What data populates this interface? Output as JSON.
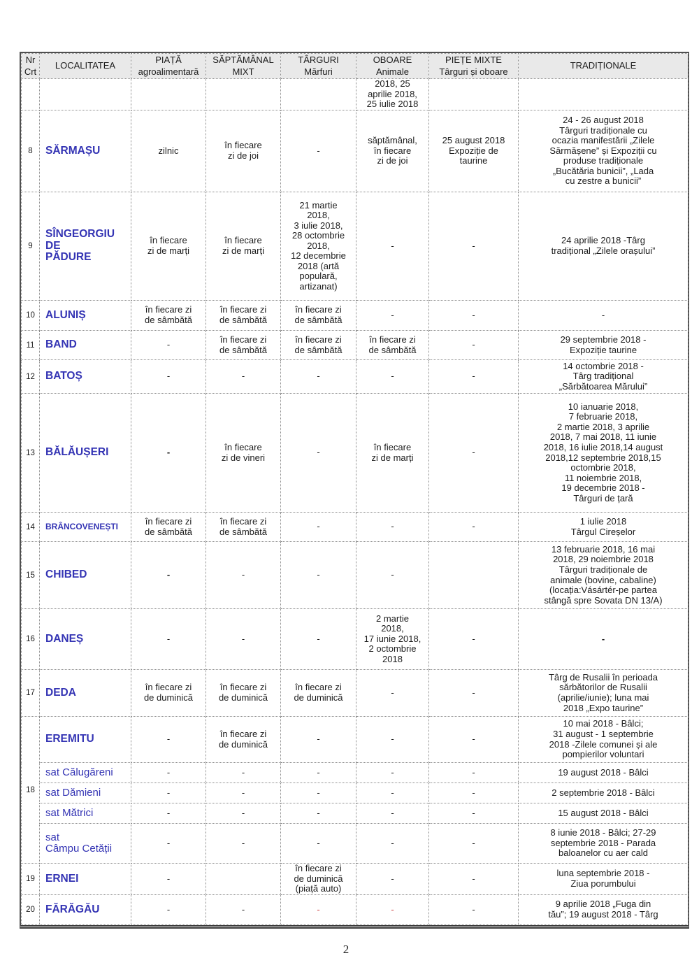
{
  "page": {
    "footer_page_number": "2"
  },
  "table": {
    "columns": [
      {
        "id": "nr",
        "label": "Nr\nCrt"
      },
      {
        "id": "localitatea",
        "label": "LOCALITATEA"
      },
      {
        "id": "piata",
        "label": "PIAȚĂ\nagroalimentară"
      },
      {
        "id": "saptamanal",
        "label": "SĂPTĂMÂNAL\nMIXT"
      },
      {
        "id": "targuri",
        "label": "TÂRGURI\nMărfuri"
      },
      {
        "id": "oboare",
        "label": "OBOARE\nAnimale"
      },
      {
        "id": "piete-mixte",
        "label": "PIEȚE MIXTE\nTârguri și oboare"
      },
      {
        "id": "traditionale",
        "label": "TRADIȚIONALE"
      }
    ],
    "accent_color": "#3434b4",
    "red_dash_color": "#cc4040",
    "rows": [
      {
        "nr": "",
        "locality": "",
        "locality_style": "",
        "cells": {
          "piata": "",
          "saptamanal": "",
          "targuri": "",
          "oboare": "2018, 25\naprilie 2018,\n25 iulie 2018",
          "piete": "",
          "traditionale": ""
        }
      },
      {
        "nr": "8",
        "locality": "SĂRMAȘU",
        "locality_style": "",
        "cells": {
          "piata": "zilnic",
          "saptamanal": "în fiecare\nzi de joi",
          "targuri": "-",
          "oboare": "săptămânal,\nîn fiecare\nzi de joi",
          "piete": "25 august 2018\nExpoziție de\ntaurine",
          "traditionale": "24 - 26 august 2018\nTârguri tradiționale cu\nocazia manifestării „Zilele\nSărmășene” și Expoziții cu\nproduse tradiționale\n„Bucătăria bunicii”, „Lada\ncu zestre a bunicii”"
        }
      },
      {
        "nr": "9",
        "locality": "SÎNGEORGIU\nDE\nPĂDURE",
        "locality_style": "",
        "cells": {
          "piata": "în fiecare\nzi de marți",
          "saptamanal": "în fiecare\nzi de marți",
          "targuri": "21 martie\n2018,\n3 iulie 2018,\n28 octombrie\n2018,\n12 decembrie\n2018 (artă\npopulară,\nartizanat)",
          "oboare": "-",
          "piete": "-",
          "traditionale": "24 aprilie 2018 -Târg\ntradițional „Zilele orașului”"
        }
      },
      {
        "nr": "10",
        "locality": "ALUNIȘ",
        "locality_style": "",
        "cells": {
          "piata": "în fiecare zi\nde sâmbătă",
          "saptamanal": "în fiecare zi\nde sâmbătă",
          "targuri": "în fiecare zi\nde sâmbătă",
          "oboare": "-",
          "piete": "-",
          "traditionale": "-"
        }
      },
      {
        "nr": "11",
        "locality": "BAND",
        "locality_style": "",
        "cells": {
          "piata": "-",
          "saptamanal": "în fiecare zi\nde sâmbătă",
          "targuri": "în fiecare zi\nde sâmbătă",
          "oboare": "în fiecare zi\nde sâmbătă",
          "piete": "-",
          "traditionale": "29 septembrie 2018 -\nExpoziție taurine"
        }
      },
      {
        "nr": "12",
        "locality": "BATOȘ",
        "locality_style": "",
        "cells": {
          "piata": "-",
          "saptamanal": "-",
          "targuri": "-",
          "oboare": "-",
          "piete": "-",
          "traditionale": "14 octombrie 2018 -\nTârg tradițional\n„Sărbătoarea Mărului”"
        }
      },
      {
        "nr": "13",
        "locality": "BĂLĂUȘERI",
        "locality_style": "",
        "bold": [
          "piata"
        ],
        "cells": {
          "piata": "-",
          "saptamanal": "în fiecare\nzi de vineri",
          "targuri": "-",
          "oboare": "în fiecare\nzi de marți",
          "piete": "-",
          "traditionale": "10 ianuarie 2018,\n7 februarie 2018,\n2 martie 2018, 3 aprilie\n2018, 7 mai 2018, 11 iunie\n2018, 16 iulie 2018,14 august\n2018,12 septembrie 2018,15\noctombrie 2018,\n11 noiembrie 2018,\n19 decembrie 2018 -\nTârguri de țară"
        }
      },
      {
        "nr": "14",
        "locality": "BRÂNCOVENEȘTI",
        "locality_style": "small",
        "cells": {
          "piata": "în fiecare zi\nde sâmbătă",
          "saptamanal": "în fiecare zi\nde sâmbătă",
          "targuri": "-",
          "oboare": "-",
          "piete": "-",
          "traditionale": "1 iulie 2018\nTârgul Cireșelor"
        }
      },
      {
        "nr": "15",
        "locality": "CHIBED",
        "locality_style": "",
        "bold": [
          "piata"
        ],
        "cells": {
          "piata": "-",
          "saptamanal": "-",
          "targuri": "-",
          "oboare": "-",
          "piete": "",
          "traditionale": "13 februarie 2018, 16 mai\n2018, 29 noiembrie 2018\nTârguri tradiționale de\nanimale (bovine, cabaline)\n(locația:Vásártér-pe partea\nstângă spre Sovata DN 13/A)"
        }
      },
      {
        "nr": "16",
        "locality": "DANEȘ",
        "locality_style": "",
        "bold": [
          "traditionale"
        ],
        "cells": {
          "piata": "-",
          "saptamanal": "-",
          "targuri": "-",
          "oboare": "2 martie\n2018,\n17 iunie 2018,\n2 octombrie\n2018",
          "piete": "-",
          "traditionale": "-"
        }
      },
      {
        "nr": "17",
        "locality": "DEDA",
        "locality_style": "",
        "cells": {
          "piata": "în fiecare zi\nde duminică",
          "saptamanal": "în fiecare zi\nde duminică",
          "targuri": "în fiecare zi\nde duminică",
          "oboare": "-",
          "piete": "-",
          "traditionale": "Târg de Rusalii în perioada\nsărbătorilor de Rusalii\n(aprilie/iunie); luna mai\n2018 „Expo taurine”"
        }
      },
      {
        "nr": "18",
        "nr_rowspan": 5,
        "locality": "EREMITU",
        "locality_style": "",
        "cells": {
          "piata": "-",
          "saptamanal": "în fiecare zi\nde duminică",
          "targuri": "-",
          "oboare": "-",
          "piete": "-",
          "traditionale": "10 mai 2018 - Bâlci;\n31 august - 1 septembrie\n2018 -Zilele comunei și ale\npompierilor voluntari"
        }
      },
      {
        "no_nr_cell": true,
        "locality": "sat Călugăreni",
        "locality_style": "sat",
        "cells": {
          "piata": "-",
          "saptamanal": "-",
          "targuri": "-",
          "oboare": "-",
          "piete": "-",
          "traditionale": "19 august 2018 - Bâlci"
        }
      },
      {
        "no_nr_cell": true,
        "locality": "sat Dămieni",
        "locality_style": "sat",
        "cells": {
          "piata": "-",
          "saptamanal": "-",
          "targuri": "-",
          "oboare": "-",
          "piete": "-",
          "traditionale": "2 septembrie 2018 - Bâlci"
        }
      },
      {
        "no_nr_cell": true,
        "locality": "sat Mătrici",
        "locality_style": "sat",
        "cells": {
          "piata": "-",
          "saptamanal": "-",
          "targuri": "-",
          "oboare": "-",
          "piete": "-",
          "traditionale": "15 august 2018 - Bâlci"
        }
      },
      {
        "no_nr_cell": true,
        "locality": "sat\nCâmpu Cetății",
        "locality_style": "sat",
        "cells": {
          "piata": "-",
          "saptamanal": "-",
          "targuri": "-",
          "oboare": "-",
          "piete": "-",
          "traditionale": "8 iunie 2018 - Bâlci; 27-29\nseptembrie 2018 - Parada\nbaloanelor cu aer cald"
        }
      },
      {
        "nr": "19",
        "locality": "ERNEI",
        "locality_style": "",
        "cells": {
          "piata": "-",
          "saptamanal": "",
          "targuri": "în fiecare zi\nde duminică\n(piață auto)",
          "oboare": "-",
          "piete": "-",
          "traditionale": "luna septembrie 2018 -\nZiua porumbului"
        }
      },
      {
        "nr": "20",
        "locality": "FĂRĂGĂU",
        "locality_style": "",
        "red": [
          "targuri",
          "oboare"
        ],
        "cells": {
          "piata": "-",
          "saptamanal": "-",
          "targuri": "-",
          "oboare": "-",
          "piete": "-",
          "traditionale": "9 aprilie 2018 „Fuga din\ntău”; 19 august 2018 - Târg"
        }
      }
    ]
  }
}
